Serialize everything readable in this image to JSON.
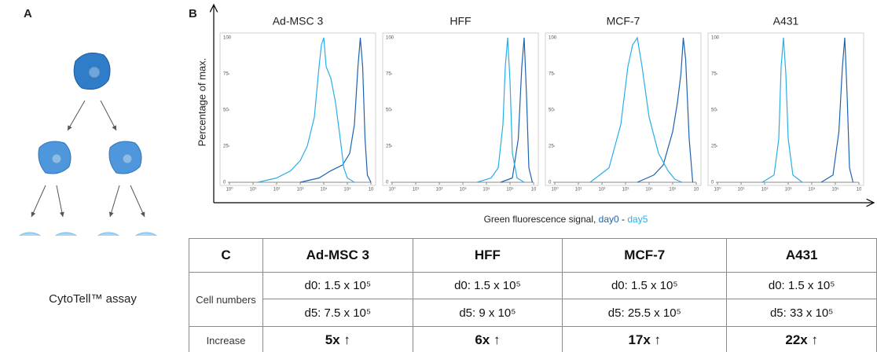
{
  "panel_a": {
    "label": "A",
    "caption": "CytoTell™ assay"
  },
  "panel_b": {
    "label": "B",
    "ylabel": "Percentage of max.",
    "xlabel": "Green fluorescence signal, ",
    "separator": " - ",
    "legend": [
      {
        "text": "day0",
        "color": "#1e63b0"
      },
      {
        "text": "day5",
        "color": "#29aee8"
      }
    ]
  },
  "chart_data": [
    {
      "type": "line",
      "title": "Ad-MSC 3",
      "xlim": [
        0,
        6
      ],
      "ylim": [
        0,
        100
      ],
      "yticks": [
        0,
        25,
        50,
        75,
        100
      ],
      "xticks": [
        {
          "value": 0,
          "label": "10⁰"
        },
        {
          "value": 1,
          "label": "10¹"
        },
        {
          "value": 2,
          "label": "10²"
        },
        {
          "value": 3,
          "label": "10³"
        },
        {
          "value": 4,
          "label": "10⁴"
        },
        {
          "value": 5,
          "label": "10⁵"
        },
        {
          "value": 6,
          "label": "10"
        }
      ],
      "series": [
        {
          "color": "#1e63b0",
          "x": [
            3,
            3.8,
            4.3,
            4.8,
            5.1,
            5.3,
            5.45,
            5.55,
            5.65,
            5.75,
            5.85,
            6
          ],
          "values": [
            0,
            3,
            8,
            12,
            20,
            40,
            80,
            100,
            80,
            30,
            5,
            0
          ]
        },
        {
          "color": "#29aee8",
          "x": [
            1.2,
            2,
            2.6,
            3,
            3.3,
            3.6,
            3.8,
            3.9,
            4.0,
            4.1,
            4.3,
            4.5,
            4.7,
            4.85,
            5.0,
            5.3
          ],
          "values": [
            0,
            3,
            8,
            15,
            25,
            45,
            80,
            95,
            100,
            80,
            72,
            55,
            30,
            10,
            3,
            0
          ]
        }
      ]
    },
    {
      "type": "line",
      "title": "HFF",
      "xlim": [
        0,
        6
      ],
      "ylim": [
        0,
        100
      ],
      "yticks": [
        0,
        25,
        50,
        75,
        100
      ],
      "xticks": [
        {
          "value": 0,
          "label": "10⁰"
        },
        {
          "value": 1,
          "label": "10¹"
        },
        {
          "value": 2,
          "label": "10²"
        },
        {
          "value": 3,
          "label": "10³"
        },
        {
          "value": 4,
          "label": "10⁴"
        },
        {
          "value": 5,
          "label": "10⁵"
        },
        {
          "value": 6,
          "label": "10"
        }
      ],
      "series": [
        {
          "color": "#1e63b0",
          "x": [
            4.6,
            5.1,
            5.35,
            5.5,
            5.6,
            5.7,
            5.8,
            5.95
          ],
          "values": [
            0,
            3,
            30,
            80,
            100,
            60,
            10,
            0
          ]
        },
        {
          "color": "#29aee8",
          "x": [
            3.6,
            4.2,
            4.5,
            4.7,
            4.8,
            4.9,
            5.0,
            5.1,
            5.3,
            5.6
          ],
          "values": [
            0,
            3,
            10,
            40,
            80,
            100,
            70,
            20,
            3,
            0
          ]
        }
      ]
    },
    {
      "type": "line",
      "title": "MCF-7",
      "xlim": [
        0,
        6
      ],
      "ylim": [
        0,
        100
      ],
      "yticks": [
        0,
        25,
        50,
        75,
        100
      ],
      "xticks": [
        {
          "value": 0,
          "label": "10⁰"
        },
        {
          "value": 1,
          "label": "10¹"
        },
        {
          "value": 2,
          "label": "10²"
        },
        {
          "value": 3,
          "label": "10³"
        },
        {
          "value": 4,
          "label": "10⁴"
        },
        {
          "value": 5,
          "label": "10⁵"
        },
        {
          "value": 6,
          "label": "10"
        }
      ],
      "series": [
        {
          "color": "#1e63b0",
          "x": [
            3.5,
            4.2,
            4.6,
            5.0,
            5.2,
            5.35,
            5.45,
            5.55,
            5.7,
            5.85
          ],
          "values": [
            0,
            5,
            12,
            35,
            55,
            75,
            100,
            85,
            30,
            0
          ]
        },
        {
          "color": "#29aee8",
          "x": [
            1.5,
            2.3,
            2.8,
            3.1,
            3.3,
            3.5,
            3.7,
            4.0,
            4.4,
            4.8,
            5.1,
            5.4
          ],
          "values": [
            0,
            10,
            40,
            80,
            95,
            100,
            80,
            45,
            20,
            8,
            2,
            0
          ]
        }
      ]
    },
    {
      "type": "line",
      "title": "A431",
      "xlim": [
        0,
        6
      ],
      "ylim": [
        0,
        100
      ],
      "yticks": [
        0,
        25,
        50,
        75,
        100
      ],
      "xticks": [
        {
          "value": 0,
          "label": "10⁰"
        },
        {
          "value": 1,
          "label": "10¹"
        },
        {
          "value": 2,
          "label": "10²"
        },
        {
          "value": 3,
          "label": "10³"
        },
        {
          "value": 4,
          "label": "10⁴"
        },
        {
          "value": 5,
          "label": "10⁵"
        },
        {
          "value": 6,
          "label": "10"
        }
      ],
      "series": [
        {
          "color": "#1e63b0",
          "x": [
            4.4,
            4.9,
            5.15,
            5.3,
            5.4,
            5.5,
            5.6,
            5.75
          ],
          "values": [
            0,
            5,
            35,
            80,
            100,
            60,
            10,
            0
          ]
        },
        {
          "color": "#29aee8",
          "x": [
            1.9,
            2.4,
            2.6,
            2.7,
            2.8,
            2.9,
            3.0,
            3.2,
            3.6
          ],
          "values": [
            0,
            5,
            30,
            80,
            100,
            75,
            30,
            5,
            0
          ]
        }
      ]
    }
  ],
  "table": {
    "header": [
      "C",
      "Ad-MSC 3",
      "HFF",
      "MCF-7",
      "A431"
    ],
    "rows": [
      [
        "Cell numbers",
        "d0: 1.5 x 10⁵",
        "d0: 1.5 x 10⁵",
        "d0: 1.5 x 10⁵",
        "d0: 1.5 x 10⁵"
      ],
      [
        "d5: 7.5 x 10⁵",
        "d5: 9 x 10⁵",
        "d5: 25.5 x 10⁵",
        "d5: 33 x 10⁵"
      ],
      [
        "Increase",
        "5x ↑",
        "6x ↑",
        "17x ↑",
        "22x ↑"
      ]
    ]
  }
}
